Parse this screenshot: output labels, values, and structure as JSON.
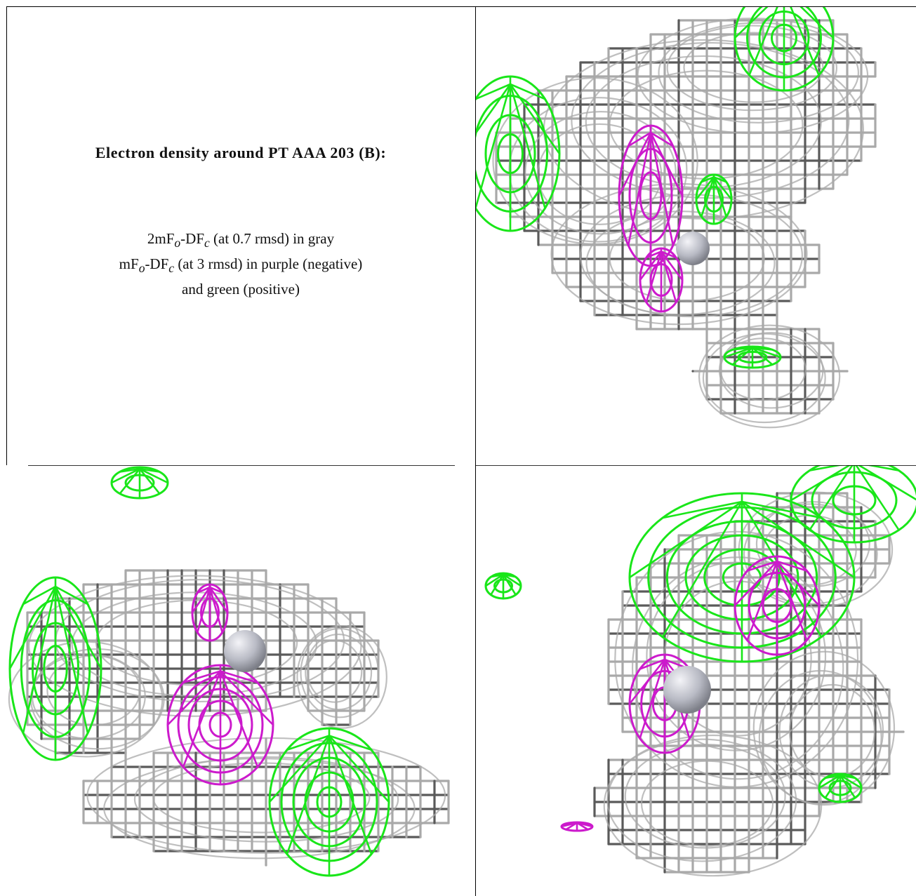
{
  "caption": {
    "title": "Electron density around PT AAA 203 (B):",
    "line1_prefix": "2mF",
    "line1_sub1": "o",
    "line1_mid": "-DF",
    "line1_sub2": "c",
    "line1_suffix": " (at 0.7 rmsd) in gray",
    "line2_prefix": "mF",
    "line2_sub1": "o",
    "line2_mid": "-DF",
    "line2_sub2": "c",
    "line2_suffix": " (at 3 rmsd) in purple (negative)",
    "line3": "and green (positive)"
  },
  "colors": {
    "gray_mesh": "#a9a9a9",
    "dark_mesh": "#5a5a5a",
    "green_mesh": "#19e619",
    "purple_mesh": "#cc1acc",
    "atom": "#b8bac4"
  },
  "panels": [
    {
      "name": "view-top-right"
    },
    {
      "name": "view-bottom-left"
    },
    {
      "name": "view-bottom-right"
    }
  ]
}
